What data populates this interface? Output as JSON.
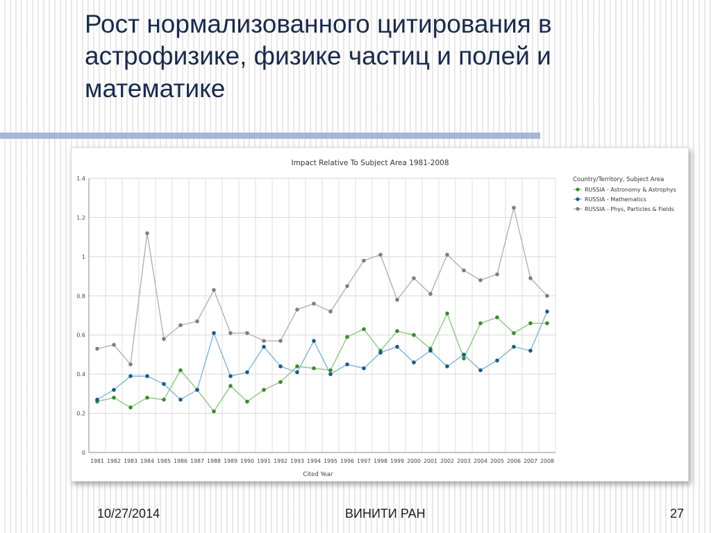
{
  "slide": {
    "title_lines": [
      "Рост нормализованного цитирования в",
      "астрофизике, физике частиц и полей и",
      "математике"
    ],
    "footer": {
      "date": "10/27/2014",
      "center": "ВИНИТИ РАН",
      "page": "27"
    }
  },
  "chart_data": {
    "type": "line",
    "title": "Impact Relative To Subject Area 1981-2008",
    "xlabel": "Cited Year",
    "ylabel": "",
    "ylim": [
      0,
      1.4
    ],
    "yticks": [
      "0",
      "0.2",
      "0.4",
      "0.6",
      "0.8",
      "1",
      "1.2",
      "1.4"
    ],
    "grid": true,
    "legend_position": "right",
    "legend_title": "Country/Territory, Subject Area",
    "categories": [
      "1981",
      "1982",
      "1983",
      "1984",
      "1985",
      "1986",
      "1987",
      "1988",
      "1989",
      "1990",
      "1991",
      "1992",
      "1993",
      "1994",
      "1995",
      "1996",
      "1997",
      "1998",
      "1999",
      "2000",
      "2001",
      "2002",
      "2003",
      "2004",
      "2005",
      "2006",
      "2007",
      "2008"
    ],
    "series": [
      {
        "name": "RUSSIA - Astronomy & Astrophys",
        "color": "#3a8a2e",
        "line_color": "#8fc583",
        "values": [
          0.26,
          0.28,
          0.23,
          0.28,
          0.27,
          0.42,
          0.32,
          0.21,
          0.34,
          0.26,
          0.32,
          0.36,
          0.44,
          0.43,
          0.42,
          0.59,
          0.63,
          0.52,
          0.62,
          0.6,
          0.53,
          0.71,
          0.48,
          0.66,
          0.69,
          0.61,
          0.66,
          0.66
        ]
      },
      {
        "name": "RUSSIA - Mathematics",
        "color": "#1a5b86",
        "line_color": "#7fb4d6",
        "values": [
          0.27,
          0.32,
          0.39,
          0.39,
          0.35,
          0.27,
          0.32,
          0.61,
          0.39,
          0.41,
          0.54,
          0.44,
          0.41,
          0.57,
          0.4,
          0.45,
          0.43,
          0.51,
          0.54,
          0.46,
          0.52,
          0.44,
          0.5,
          0.42,
          0.47,
          0.54,
          0.52,
          0.72
        ]
      },
      {
        "name": "RUSSIA - Phys, Particles & Fields",
        "color": "#8a7a72",
        "line_color": "#b8b0ac",
        "values": [
          0.53,
          0.55,
          0.45,
          1.12,
          0.58,
          0.65,
          0.67,
          0.83,
          0.61,
          0.61,
          0.57,
          0.57,
          0.73,
          0.76,
          0.72,
          0.85,
          0.98,
          1.01,
          0.78,
          0.89,
          0.81,
          1.01,
          0.93,
          0.88,
          0.91,
          1.25,
          0.89,
          0.8
        ]
      }
    ]
  }
}
